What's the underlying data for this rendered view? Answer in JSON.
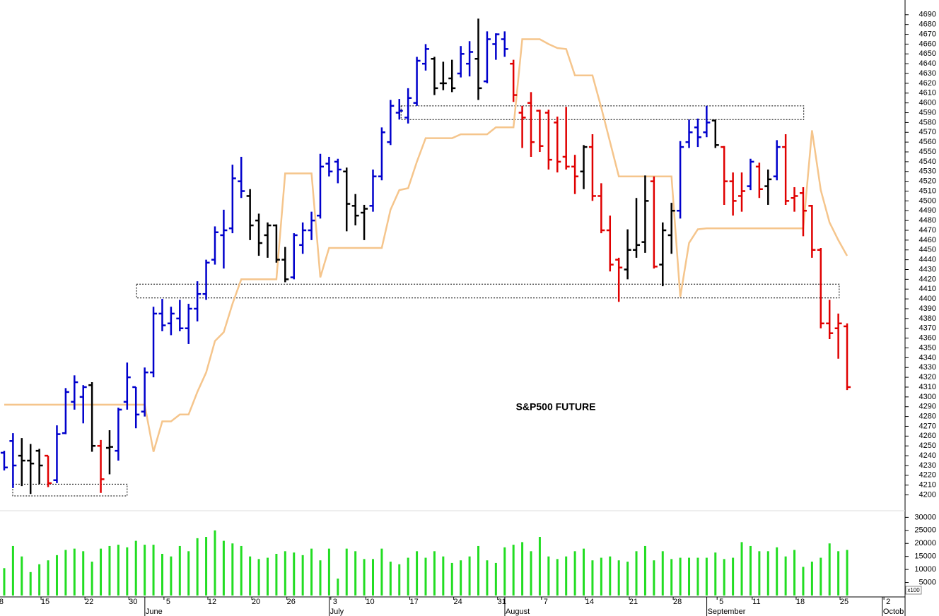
{
  "chart_data": {
    "type": "ohlc",
    "title": "S&P500 FUTURE",
    "xlim": [
      -0.48,
      102.6
    ],
    "ylim": [
      4186,
      4705
    ],
    "yticks": [
      4200,
      4210,
      4220,
      4230,
      4240,
      4250,
      4260,
      4270,
      4280,
      4290,
      4300,
      4310,
      4320,
      4330,
      4340,
      4350,
      4360,
      4370,
      4380,
      4390,
      4400,
      4410,
      4420,
      4430,
      4440,
      4450,
      4460,
      4470,
      4480,
      4490,
      4500,
      4510,
      4520,
      4530,
      4540,
      4550,
      4560,
      4570,
      4580,
      4590,
      4600,
      4610,
      4620,
      4630,
      4640,
      4650,
      4660,
      4670,
      4680,
      4690
    ],
    "xticks": [
      {
        "value": 0,
        "label": "8"
      },
      {
        "value": 5,
        "label": "15"
      },
      {
        "value": 10,
        "label": "22"
      },
      {
        "value": 15,
        "label": "30"
      },
      {
        "value": 19,
        "label": "5"
      },
      {
        "value": 24,
        "label": "12"
      },
      {
        "value": 29,
        "label": "20"
      },
      {
        "value": 33,
        "label": "26"
      },
      {
        "value": 38,
        "label": "3"
      },
      {
        "value": 42,
        "label": "10"
      },
      {
        "value": 47,
        "label": "17"
      },
      {
        "value": 52,
        "label": "24"
      },
      {
        "value": 57,
        "label": "31"
      },
      {
        "value": 62,
        "label": "7"
      },
      {
        "value": 67,
        "label": "14"
      },
      {
        "value": 72,
        "label": "21"
      },
      {
        "value": 77,
        "label": "28"
      },
      {
        "value": 82,
        "label": "5"
      },
      {
        "value": 86,
        "label": "11"
      },
      {
        "value": 91,
        "label": "18"
      },
      {
        "value": 96,
        "label": "25"
      },
      {
        "value": 101,
        "label": "2"
      }
    ],
    "month_ticks": [
      {
        "value": 16.5,
        "label": "June"
      },
      {
        "value": 37.5,
        "label": "July"
      },
      {
        "value": 57.5,
        "label": "August"
      },
      {
        "value": 80.5,
        "label": "September"
      },
      {
        "value": 100.5,
        "label": "Octob"
      }
    ],
    "open": [
      4243,
      4255,
      4240,
      4235,
      4245,
      4240,
      4215,
      4263,
      4295,
      4300,
      4312,
      4250,
      4248,
      4245,
      4295,
      4310,
      4285,
      4325,
      4385,
      4375,
      4380,
      4370,
      4390,
      4405,
      4440,
      4465,
      4472,
      4520,
      4505,
      4480,
      4465,
      4475,
      4440,
      4422,
      4455,
      4470,
      4485,
      4538,
      4540,
      4530,
      4495,
      4488,
      4495,
      4525,
      4560,
      4590,
      4585,
      4600,
      4640,
      4645,
      4620,
      4625,
      4630,
      4640,
      4645,
      4622,
      4660,
      4665,
      4640,
      4590,
      4600,
      4592,
      4590,
      4580,
      4545,
      4535,
      4530,
      4555,
      4505,
      4470,
      4440,
      4430,
      4450,
      4458,
      4520,
      4435,
      4465,
      4490,
      4560,
      4575,
      4570,
      4582,
      4555,
      4520,
      4505,
      4515,
      4535,
      4515,
      4525,
      4555,
      4503,
      4508,
      4495,
      4450,
      4375,
      4370,
      4372
    ],
    "high": [
      4245,
      4263,
      4258,
      4252,
      4247,
      4240,
      4271,
      4309,
      4322,
      4312,
      4315,
      4256,
      4266,
      4289,
      4335,
      4310,
      4330,
      4392,
      4400,
      4392,
      4399,
      4395,
      4418,
      4440,
      4474,
      4491,
      4537,
      4545,
      4512,
      4487,
      4478,
      4476,
      4453,
      4467,
      4478,
      4489,
      4548,
      4545,
      4543,
      4534,
      4507,
      4496,
      4532,
      4575,
      4603,
      4604,
      4615,
      4647,
      4660,
      4647,
      4642,
      4644,
      4658,
      4663,
      4686,
      4673,
      4671,
      4673,
      4644,
      4597,
      4611,
      4593,
      4593,
      4586,
      4596,
      4547,
      4557,
      4568,
      4518,
      4485,
      4442,
      4471,
      4503,
      4526,
      4525,
      4478,
      4498,
      4561,
      4583,
      4584,
      4597,
      4583,
      4556,
      4529,
      4529,
      4543,
      4539,
      4532,
      4562,
      4568,
      4514,
      4514,
      4496,
      4452,
      4399,
      4385,
      4375
    ],
    "low": [
      4225,
      4207,
      4209,
      4201,
      4211,
      4208,
      4212,
      4262,
      4287,
      4273,
      4244,
      4202,
      4221,
      4235,
      4287,
      4268,
      4280,
      4320,
      4367,
      4363,
      4367,
      4354,
      4377,
      4399,
      4435,
      4431,
      4467,
      4503,
      4460,
      4444,
      4442,
      4437,
      4417,
      4420,
      4446,
      4460,
      4482,
      4525,
      4518,
      4469,
      4475,
      4460,
      4489,
      4521,
      4557,
      4583,
      4579,
      4597,
      4633,
      4608,
      4613,
      4611,
      4626,
      4627,
      4603,
      4620,
      4644,
      4647,
      4601,
      4554,
      4545,
      4550,
      4532,
      4529,
      4532,
      4507,
      4512,
      4500,
      4467,
      4428,
      4397,
      4420,
      4442,
      4447,
      4431,
      4413,
      4446,
      4482,
      4554,
      4555,
      4565,
      4554,
      4496,
      4485,
      4489,
      4511,
      4503,
      4496,
      4521,
      4496,
      4489,
      4464,
      4442,
      4370,
      4359,
      4339,
      4307
    ],
    "close": [
      4228,
      4230,
      4235,
      4232,
      4230,
      4212,
      4262,
      4305,
      4315,
      4310,
      4250,
      4216,
      4249,
      4287,
      4320,
      4282,
      4325,
      4385,
      4373,
      4385,
      4370,
      4390,
      4405,
      4437,
      4468,
      4470,
      4523,
      4510,
      4475,
      4457,
      4475,
      4440,
      4420,
      4465,
      4470,
      4480,
      4535,
      4530,
      4532,
      4497,
      4485,
      4492,
      4525,
      4570,
      4597,
      4592,
      4605,
      4643,
      4655,
      4615,
      4620,
      4615,
      4650,
      4652,
      4615,
      4665,
      4670,
      4655,
      4608,
      4585,
      4560,
      4556,
      4542,
      4540,
      4535,
      4525,
      4555,
      4505,
      4470,
      4435,
      4432,
      4450,
      4455,
      4500,
      4433,
      4470,
      4490,
      4555,
      4570,
      4565,
      4580,
      4557,
      4520,
      4500,
      4510,
      4540,
      4512,
      4522,
      4555,
      4500,
      4505,
      4490,
      4450,
      4375,
      4365,
      4375,
      4310
    ],
    "bar_colors": [
      "#0000cc",
      "#0000cc",
      "#000000",
      "#000000",
      "#000000",
      "#e00000",
      "#0000cc",
      "#0000cc",
      "#0000cc",
      "#0000cc",
      "#000000",
      "#e00000",
      "#000000",
      "#0000cc",
      "#0000cc",
      "#0000cc",
      "#0000cc",
      "#0000cc",
      "#0000cc",
      "#0000cc",
      "#0000cc",
      "#0000cc",
      "#0000cc",
      "#0000cc",
      "#0000cc",
      "#0000cc",
      "#0000cc",
      "#0000cc",
      "#000000",
      "#000000",
      "#000000",
      "#000000",
      "#000000",
      "#0000cc",
      "#0000cc",
      "#0000cc",
      "#0000cc",
      "#0000cc",
      "#0000cc",
      "#000000",
      "#000000",
      "#000000",
      "#0000cc",
      "#0000cc",
      "#0000cc",
      "#0000cc",
      "#0000cc",
      "#0000cc",
      "#0000cc",
      "#000000",
      "#000000",
      "#000000",
      "#0000cc",
      "#0000cc",
      "#000000",
      "#0000cc",
      "#0000cc",
      "#0000cc",
      "#e00000",
      "#e00000",
      "#e00000",
      "#e00000",
      "#e00000",
      "#e00000",
      "#e00000",
      "#e00000",
      "#000000",
      "#e00000",
      "#e00000",
      "#e00000",
      "#e00000",
      "#000000",
      "#000000",
      "#000000",
      "#e00000",
      "#000000",
      "#000000",
      "#0000cc",
      "#0000cc",
      "#0000cc",
      "#0000cc",
      "#000000",
      "#e00000",
      "#e00000",
      "#e00000",
      "#0000cc",
      "#e00000",
      "#000000",
      "#0000cc",
      "#e00000",
      "#e00000",
      "#e00000",
      "#e00000",
      "#e00000",
      "#e00000",
      "#e00000",
      "#e00000"
    ],
    "overlay": {
      "color": "#f5c58c",
      "values": [
        4292,
        4292,
        4292,
        4292,
        4292,
        4292,
        4292,
        4292,
        4292,
        4292,
        4292,
        4292,
        4292,
        4292,
        4292,
        4292,
        4292,
        4244,
        4275,
        4275,
        4282,
        4282,
        4305,
        4325,
        4357,
        4366,
        4395,
        4420,
        4420,
        4420,
        4420,
        4420,
        4528,
        4528,
        4528,
        4528,
        4422,
        4452,
        4452,
        4452,
        4452,
        4452,
        4452,
        4452,
        4491,
        4511,
        4513,
        4540,
        4564,
        4564,
        4564,
        4564,
        4568,
        4568,
        4568,
        4568,
        4575,
        4575,
        4575,
        4665,
        4665,
        4665,
        4660,
        4656,
        4655,
        4628,
        4628,
        4628,
        4595,
        4560,
        4525,
        4525,
        4525,
        4525,
        4525,
        4525,
        4525,
        4402,
        4457,
        4471,
        4472,
        4472,
        4472,
        4472,
        4472,
        4472,
        4472,
        4472,
        4472,
        4472,
        4472,
        4472,
        4572,
        4511,
        4478,
        4460,
        4444
      ]
    },
    "zones": [
      {
        "x": [
          0.97,
          14.0
        ],
        "y": [
          4199,
          4211
        ]
      },
      {
        "x": [
          15.07,
          95.1
        ],
        "y": [
          4401,
          4415
        ]
      },
      {
        "x": [
          45.2,
          91.06
        ],
        "y": [
          4583,
          4597
        ]
      }
    ],
    "volume": {
      "color": "#22dd22",
      "unit_label": "x100",
      "ylim": [
        0,
        32000
      ],
      "yticks": [
        5000,
        10000,
        15000,
        20000,
        25000,
        30000
      ],
      "values": [
        10500,
        19000,
        15000,
        9000,
        12000,
        13500,
        15500,
        17500,
        18000,
        17000,
        13000,
        18000,
        19000,
        19500,
        18500,
        21000,
        19500,
        19500,
        16000,
        15000,
        19000,
        17000,
        22000,
        22500,
        25000,
        21000,
        20000,
        19000,
        15000,
        14000,
        14500,
        16000,
        17000,
        16500,
        15500,
        18000,
        13500,
        18000,
        6500,
        18000,
        17000,
        14000,
        14000,
        18000,
        13000,
        12000,
        14500,
        17000,
        14500,
        17000,
        15000,
        12500,
        13500,
        15000,
        19000,
        13500,
        12500,
        18500,
        19500,
        20500,
        17000,
        22500,
        15000,
        14000,
        15000,
        17000,
        18000,
        13500,
        14500,
        15000,
        13500,
        13000,
        17000,
        19000,
        13500,
        17000,
        14000,
        14500,
        14500,
        14500,
        14500,
        16500,
        14000,
        14500,
        20500,
        19000,
        17000,
        17000,
        18500,
        15000,
        17500,
        11000,
        13000,
        14500,
        20000,
        17000,
        17500
      ]
    }
  }
}
